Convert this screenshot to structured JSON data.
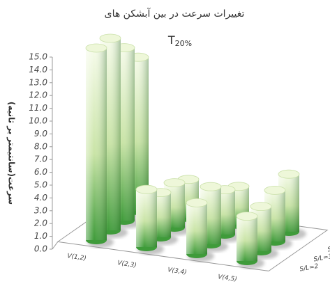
{
  "chart_data": {
    "type": "cylinder3d",
    "title": "تغییرات سرعت در بین آبشکن های",
    "subtitle": "T",
    "subtitle_subscript": "20%",
    "y_label": "سرعت(سانتیمتر بر ثانیه)",
    "categories": [
      "V(1,2)",
      "V(2,3)",
      "V(3,4)",
      "V(4,5)"
    ],
    "series": [
      {
        "name": "S/L=2",
        "color": "#3f9b3a",
        "values": [
          15,
          4.5,
          4,
          3.5
        ]
      },
      {
        "name": "S/L=3",
        "color": "#3f9b3a",
        "values": [
          15,
          3.5,
          4.5,
          3.5
        ]
      },
      {
        "name": "S/L=4",
        "color": "#3f9b3a",
        "values": [
          13.5,
          3.5,
          3.5,
          4
        ]
      },
      {
        "name": "S/L=5",
        "color": "#3f9b3a",
        "values": [
          12,
          3,
          3,
          4.5
        ]
      }
    ],
    "ylim": [
      0,
      15
    ],
    "yticks": [
      {
        "value": 0,
        "label": "0.0"
      },
      {
        "value": 1,
        "label": "1.0"
      },
      {
        "value": 2,
        "label": "2.0"
      },
      {
        "value": 3,
        "label": "3.0"
      },
      {
        "value": 4,
        "label": "4.0"
      },
      {
        "value": 5,
        "label": "5.0"
      },
      {
        "value": 6,
        "label": "6.0"
      },
      {
        "value": 7,
        "label": "7.0"
      },
      {
        "value": 8,
        "label": "8.0"
      },
      {
        "value": 9,
        "label": "9.0"
      },
      {
        "value": 10,
        "label": "10.0"
      },
      {
        "value": 11,
        "label": "11.0"
      },
      {
        "value": 12,
        "label": "12.0"
      },
      {
        "value": 13,
        "label": "13.0"
      },
      {
        "value": 14,
        "label": "14.0"
      },
      {
        "value": 15,
        "label": "15.0"
      }
    ]
  }
}
